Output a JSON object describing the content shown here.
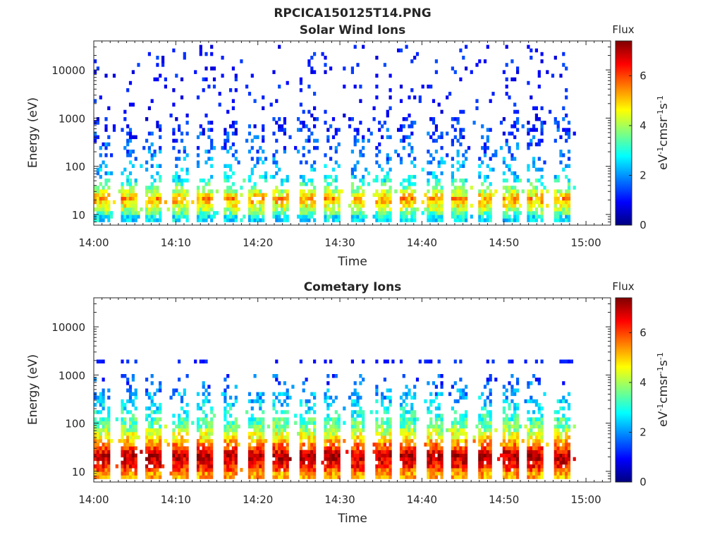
{
  "figure": {
    "suptitle": "RPCICA150125T14.PNG"
  },
  "colorbar": {
    "colormap": "jet",
    "colors": [
      "#00007f",
      "#0000ff",
      "#007fff",
      "#00ffff",
      "#7fff7f",
      "#ffff00",
      "#ff7f00",
      "#ff0000",
      "#7f0000"
    ]
  },
  "chart_data": [
    {
      "type": "heatmap",
      "title": "Solar Wind Ions",
      "xlabel": "Time",
      "ylabel": "Energy (eV)",
      "yscale": "log",
      "ylim": [
        6,
        40000
      ],
      "xlim": [
        "14:00",
        "15:03"
      ],
      "x_ticks": [
        "14:00",
        "14:10",
        "14:20",
        "14:30",
        "14:40",
        "14:50",
        "15:00"
      ],
      "y_ticks": [
        "10",
        "100",
        "1000",
        "10000"
      ],
      "data_range_x": [
        "14:00",
        "14:59"
      ],
      "sweep_count": 19,
      "colorbar": {
        "title": "Flux",
        "label": "eV-1cm-2sr-1s-1",
        "range": [
          0,
          7.4
        ],
        "ticks": [
          "0",
          "2",
          "4",
          "6"
        ]
      },
      "profile": [
        {
          "energy_eV": 8,
          "flux": 2.6
        },
        {
          "energy_eV": 12,
          "flux": 4.2
        },
        {
          "energy_eV": 20,
          "flux": 5.4
        },
        {
          "energy_eV": 28,
          "flux": 4.0
        },
        {
          "energy_eV": 60,
          "flux": 2.4
        },
        {
          "energy_eV": 150,
          "flux": 1.8
        },
        {
          "energy_eV": 400,
          "flux": 1.3
        },
        {
          "energy_eV": 2000,
          "flux": 1.0
        },
        {
          "energy_eV": 35000,
          "flux": 0.8
        }
      ],
      "density": {
        "low_band_eV": [
          8,
          28
        ],
        "sparse_above_eV": 60
      }
    },
    {
      "type": "heatmap",
      "title": "Cometary Ions",
      "xlabel": "Time",
      "ylabel": "Energy (eV)",
      "yscale": "log",
      "ylim": [
        6,
        40000
      ],
      "xlim": [
        "14:00",
        "15:03"
      ],
      "x_ticks": [
        "14:00",
        "14:10",
        "14:20",
        "14:30",
        "14:40",
        "14:50",
        "15:00"
      ],
      "y_ticks": [
        "10",
        "100",
        "1000",
        "10000"
      ],
      "data_range_x": [
        "14:00",
        "14:59"
      ],
      "sweep_count": 19,
      "colorbar": {
        "title": "Flux",
        "label": "eV-1cm-2sr-1s-1",
        "range": [
          0,
          7.4
        ],
        "ticks": [
          "0",
          "2",
          "4",
          "6"
        ]
      },
      "profile": [
        {
          "energy_eV": 8,
          "flux": 5.2
        },
        {
          "energy_eV": 12,
          "flux": 6.4
        },
        {
          "energy_eV": 20,
          "flux": 7.0
        },
        {
          "energy_eV": 28,
          "flux": 6.0
        },
        {
          "energy_eV": 45,
          "flux": 4.8
        },
        {
          "energy_eV": 80,
          "flux": 3.6
        },
        {
          "energy_eV": 200,
          "flux": 2.6
        },
        {
          "energy_eV": 600,
          "flux": 1.6
        },
        {
          "energy_eV": 1800,
          "flux": 1.0
        }
      ],
      "density": {
        "max_energy_eV": 900,
        "band_eV": 1800
      }
    }
  ]
}
